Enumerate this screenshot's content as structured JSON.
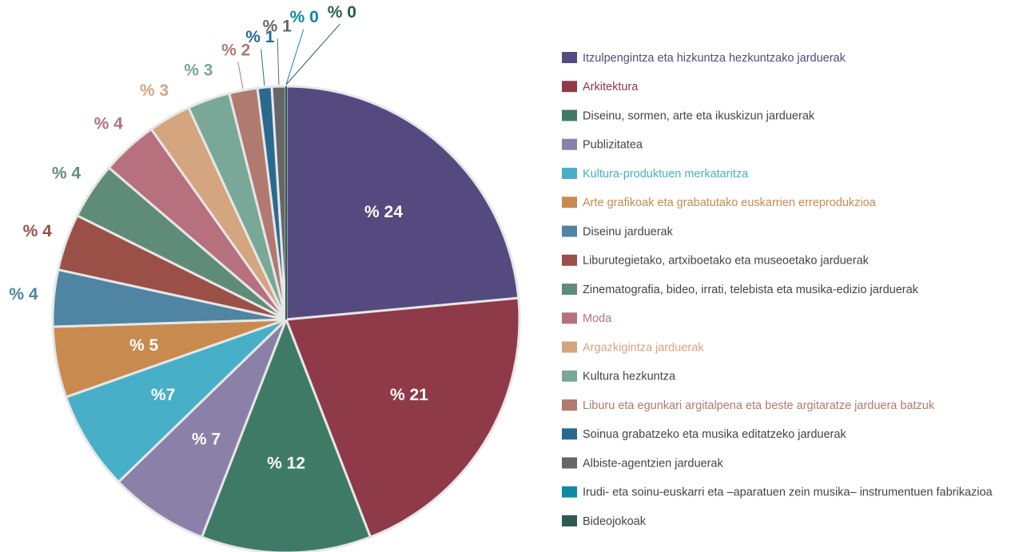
{
  "chart_data": {
    "type": "pie",
    "categories": [
      "Itzulpengintza eta hizkuntza hezkuntzako jarduerak",
      "Arkitektura",
      "Diseinu, sormen, arte eta ikuskizun jarduerak",
      "Publizitatea",
      "Kultura-produktuen merkataritza",
      "Arte grafikoak eta grabatutako euskarrien erreprodukzioa",
      "Diseinu jarduerak",
      "Liburutegietako, artxiboetako eta museoetako jarduerak",
      "Zinematografia, bideo, irrati, telebista eta musika-edizio jarduerak",
      "Moda",
      "Argazkigintza jarduerak",
      "Kultura hezkuntza",
      "Liburu eta egunkari argitalpena eta beste argitaratze jarduera batzuk",
      "Soinua grabatzeko eta musika editatzeko jarduerak",
      "Albiste-agentzien jarduerak",
      "Irudi- eta soinu-euskarri eta –aparatuen zein musika– instrumentuen fabrikazioa",
      "Bideojokoak"
    ],
    "values": [
      24,
      21,
      12,
      7,
      7,
      5,
      4,
      4,
      4,
      4,
      3,
      3,
      2,
      1,
      1,
      0,
      0
    ],
    "value_labels": [
      "% 24",
      "% 21",
      "% 12",
      "% 7",
      "%7",
      "% 5",
      "% 4",
      "% 4",
      "% 4",
      "% 4",
      "% 3",
      "% 3",
      "% 2",
      "% 1",
      "% 1",
      "% 0",
      "% 0"
    ],
    "colors": [
      "#554a80",
      "#8e3a48",
      "#3f7a67",
      "#8b81a8",
      "#48afc9",
      "#c98a50",
      "#4f84a3",
      "#9a4f47",
      "#5f8c79",
      "#b7707e",
      "#d4a57e",
      "#79a898",
      "#b07a70",
      "#2a6a8f",
      "#666666",
      "#0e8aa5",
      "#2d5c4e"
    ]
  }
}
